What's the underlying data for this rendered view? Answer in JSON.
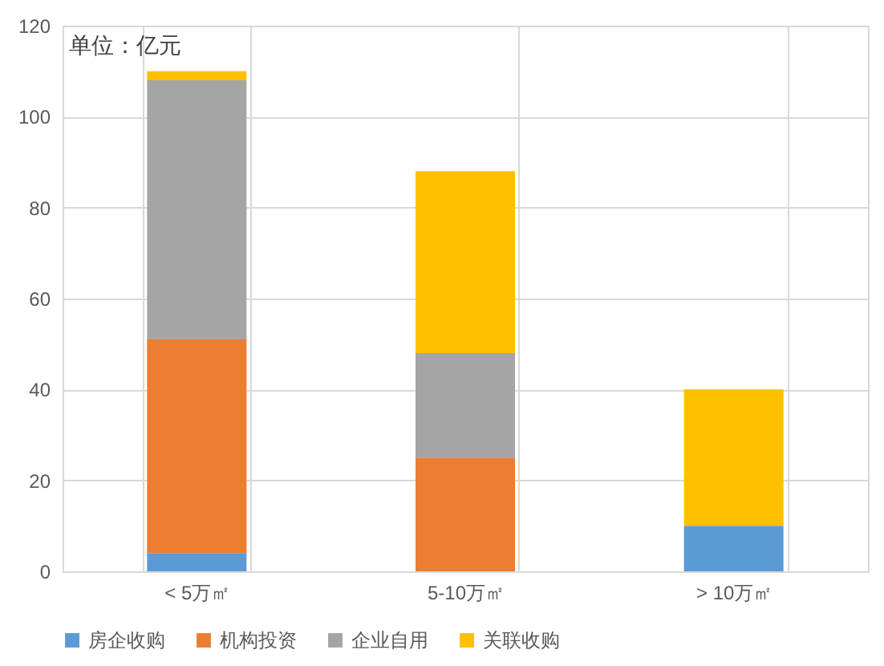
{
  "chart_data": {
    "type": "bar",
    "stacked": true,
    "categories": [
      "< 5万㎡",
      "5-10万㎡",
      "> 10万㎡"
    ],
    "series": [
      {
        "name": "房企收购",
        "color": "#5b9bd5",
        "values": [
          4,
          null,
          10
        ]
      },
      {
        "name": "机构投资",
        "color": "#ed7d31",
        "values": [
          47,
          25,
          null
        ]
      },
      {
        "name": "企业自用",
        "color": "#a5a5a5",
        "values": [
          57,
          23,
          null
        ]
      },
      {
        "name": "关联收购",
        "color": "#ffc000",
        "values": [
          2,
          40,
          30
        ]
      }
    ],
    "ylim": [
      0,
      120
    ],
    "yticks": [
      0,
      20,
      40,
      60,
      80,
      100,
      120
    ],
    "grid": true,
    "legend": "bottom",
    "annotations": [
      "单位：亿元"
    ]
  }
}
